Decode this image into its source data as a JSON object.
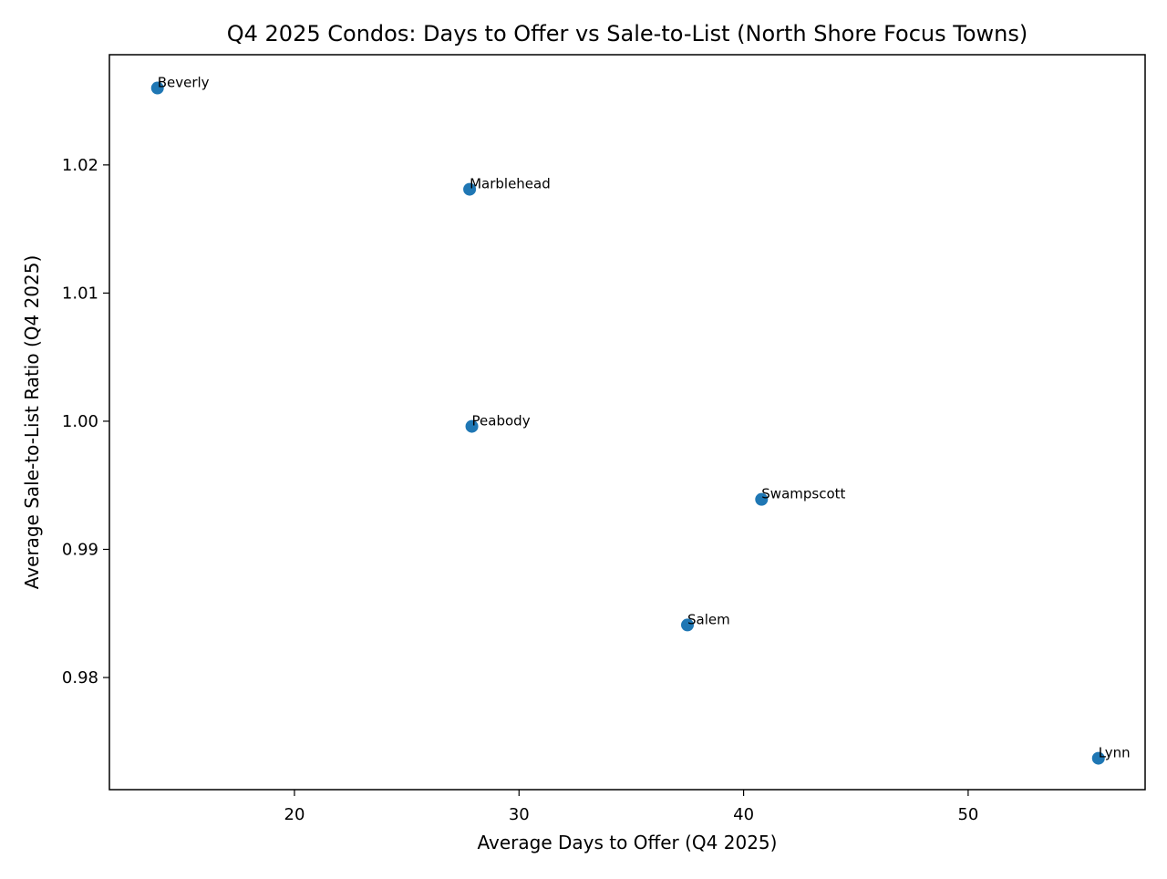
{
  "chart_data": {
    "type": "scatter",
    "title": "Q4 2025 Condos: Days to Offer vs Sale-to-List (North Shore Focus Towns)",
    "xlabel": "Average Days to Offer (Q4 2025)",
    "ylabel": "Average Sale-to-List Ratio (Q4 2025)",
    "xlim": [
      11.76,
      57.88
    ],
    "ylim": [
      0.97125,
      1.0286
    ],
    "xticks": [
      20,
      30,
      40,
      50
    ],
    "xtick_labels": [
      "20",
      "30",
      "40",
      "50"
    ],
    "yticks": [
      0.98,
      0.99,
      1.0,
      1.01,
      1.02
    ],
    "ytick_labels": [
      "0.98",
      "0.99",
      "1.00",
      "1.01",
      "1.02"
    ],
    "grid": false,
    "marker_color": "#1f77b4",
    "points": [
      {
        "label": "Beverly",
        "x": 13.9,
        "y": 1.026
      },
      {
        "label": "Marblehead",
        "x": 27.8,
        "y": 1.0181
      },
      {
        "label": "Peabody",
        "x": 27.9,
        "y": 0.9996
      },
      {
        "label": "Swampscott",
        "x": 40.8,
        "y": 0.9939
      },
      {
        "label": "Salem",
        "x": 37.5,
        "y": 0.9841
      },
      {
        "label": "Lynn",
        "x": 55.8,
        "y": 0.9737
      }
    ]
  }
}
